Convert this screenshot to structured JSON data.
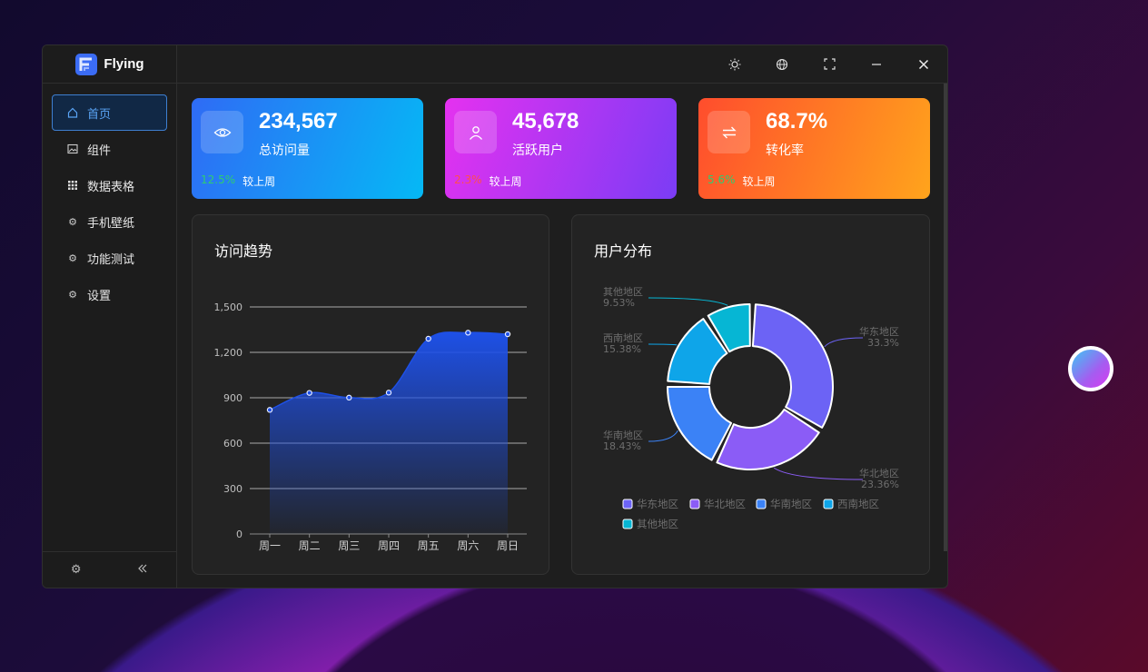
{
  "app": {
    "name": "Flying"
  },
  "sidebar": {
    "items": [
      {
        "label": "首页",
        "icon": "home-icon",
        "active": true
      },
      {
        "label": "组件",
        "icon": "image-icon"
      },
      {
        "label": "数据表格",
        "icon": "grid-icon"
      },
      {
        "label": "手机壁纸",
        "icon": "gear-icon"
      },
      {
        "label": "功能测试",
        "icon": "gear-icon"
      },
      {
        "label": "设置",
        "icon": "gear-icon"
      }
    ],
    "footer": {
      "settings_icon": "gear-icon",
      "collapse_icon": "double-chevron-left-icon"
    }
  },
  "topbar": {
    "icons": [
      "sun-icon",
      "globe-icon",
      "fullscreen-icon",
      "minimize-icon",
      "close-icon"
    ]
  },
  "stats": [
    {
      "value": "234,567",
      "label": "总访问量",
      "change": "12.5%",
      "change_color": "#2ecc71",
      "compare": "较上周",
      "icon": "eye-icon",
      "gradient": [
        "#2f6bf5",
        "#05b9f5"
      ]
    },
    {
      "value": "45,678",
      "label": "活跃用户",
      "change": "2.3%",
      "change_color": "#ff4d4f",
      "compare": "较上周",
      "icon": "user-icon",
      "gradient": [
        "#e531f0",
        "#7b3cf5"
      ]
    },
    {
      "value": "68.7%",
      "label": "转化率",
      "change": "5.6%",
      "change_color": "#2ecc71",
      "compare": "较上周",
      "icon": "swap-icon",
      "gradient": [
        "#ff4d2d",
        "#ffa41c"
      ]
    }
  ],
  "trend": {
    "title": "访问趋势"
  },
  "distribution": {
    "title": "用户分布"
  },
  "chart_data": [
    {
      "type": "area",
      "title": "访问趋势",
      "categories": [
        "周一",
        "周二",
        "周三",
        "周四",
        "周五",
        "周六",
        "周日"
      ],
      "values": [
        820,
        932,
        901,
        934,
        1290,
        1330,
        1320
      ],
      "yticks": [
        "0",
        "300",
        "600",
        "900",
        "1,200",
        "1,500"
      ],
      "ylim": [
        0,
        1500
      ],
      "grid": true,
      "color": "#1e50e6"
    },
    {
      "type": "pie",
      "title": "用户分布",
      "slices": [
        {
          "name": "华东地区",
          "value": 33.3,
          "label": "33.3%",
          "color": "#6c63f5"
        },
        {
          "name": "华北地区",
          "value": 23.36,
          "label": "23.36%",
          "color": "#8b5cf6"
        },
        {
          "name": "华南地区",
          "value": 18.43,
          "label": "18.43%",
          "color": "#3b82f6"
        },
        {
          "name": "西南地区",
          "value": 15.38,
          "label": "15.38%",
          "color": "#0ea5e9"
        },
        {
          "name": "其他地区",
          "value": 9.53,
          "label": "9.53%",
          "color": "#06b6d4"
        }
      ],
      "legend": "bottom"
    }
  ]
}
